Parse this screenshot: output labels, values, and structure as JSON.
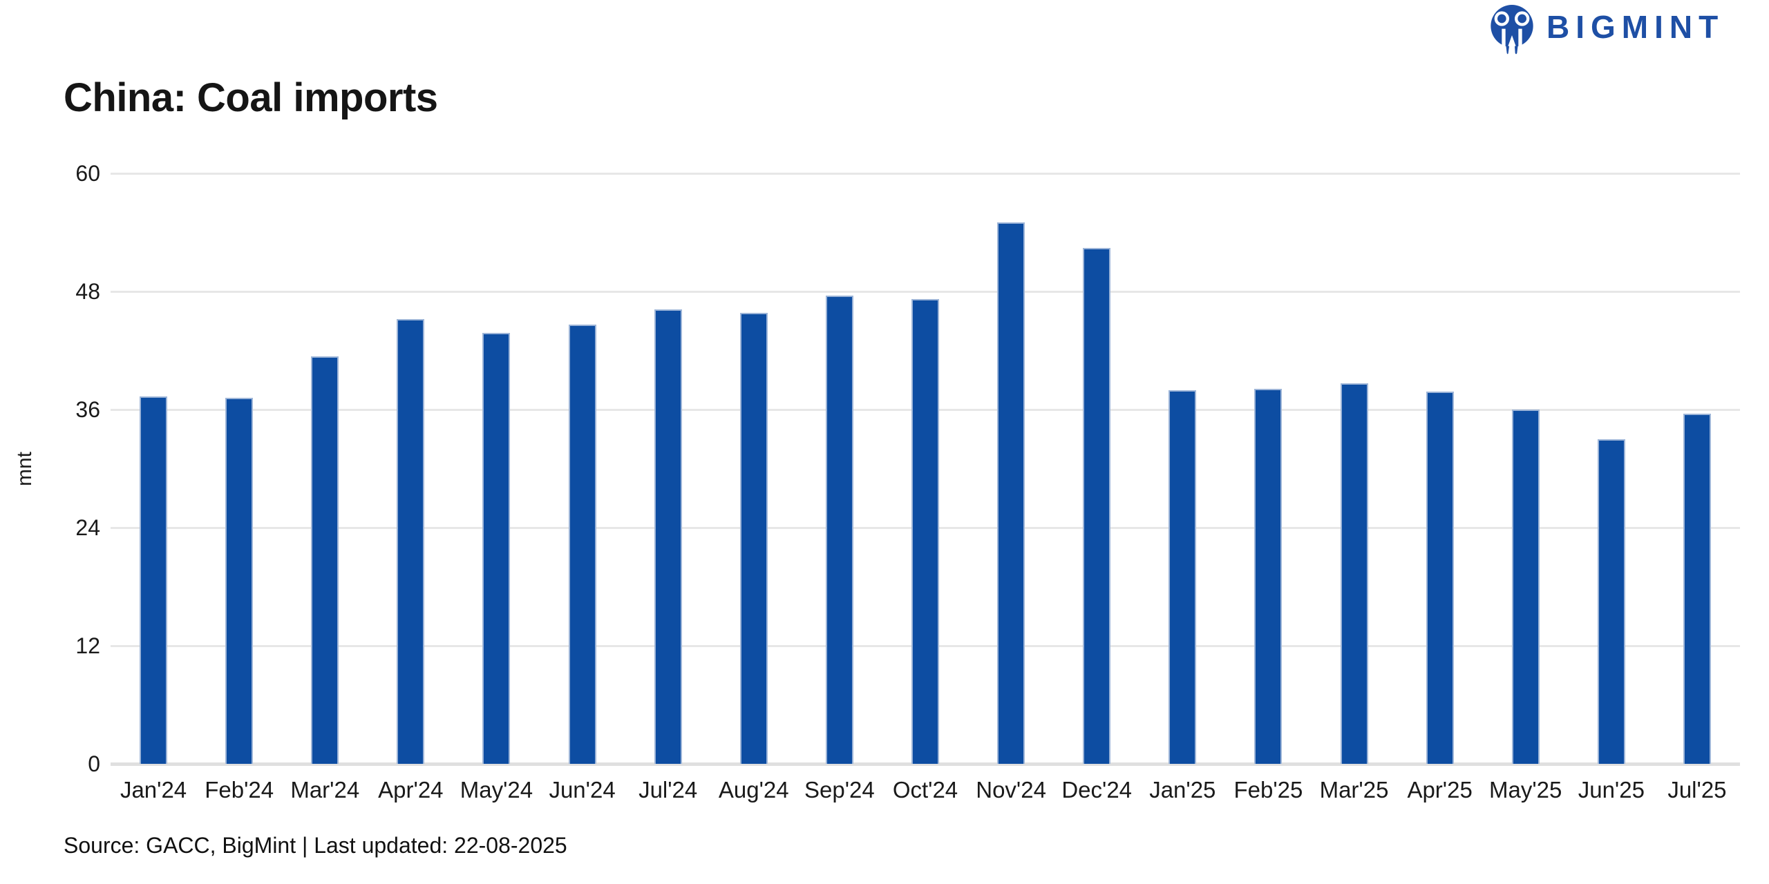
{
  "header": {
    "title": "China: Coal imports",
    "logo_text": "BIGMINT"
  },
  "chart_data": {
    "type": "bar",
    "title": "China: Coal imports",
    "xlabel": "",
    "ylabel": "mnt",
    "ylim": [
      0,
      60
    ],
    "yticks": [
      0,
      12,
      24,
      36,
      48,
      60
    ],
    "grid": true,
    "legend": "none",
    "categories": [
      "Jan'24",
      "Feb'24",
      "Mar'24",
      "Apr'24",
      "May'24",
      "Jun'24",
      "Jul'24",
      "Aug'24",
      "Sep'24",
      "Oct'24",
      "Nov'24",
      "Dec'24",
      "Jan'25",
      "Feb'25",
      "Mar'25",
      "Apr'25",
      "May'25",
      "Jun'25",
      "Jul'25"
    ],
    "values": [
      37.3,
      37.2,
      41.4,
      45.2,
      43.8,
      44.6,
      46.2,
      45.8,
      47.6,
      47.2,
      55.0,
      52.4,
      38.0,
      38.1,
      38.7,
      37.8,
      36.0,
      33.0,
      35.6
    ]
  },
  "footer": {
    "source": "Source: GACC, BigMint | Last updated: 22-08-2025"
  },
  "colors": {
    "bar": "#0d4da2",
    "bar_border": "#9db5d8",
    "logo_blue": "#1e4fa5",
    "gridline": "#e7e7e7",
    "baseline": "#e0e0e0",
    "text": "#1a1a1a"
  }
}
